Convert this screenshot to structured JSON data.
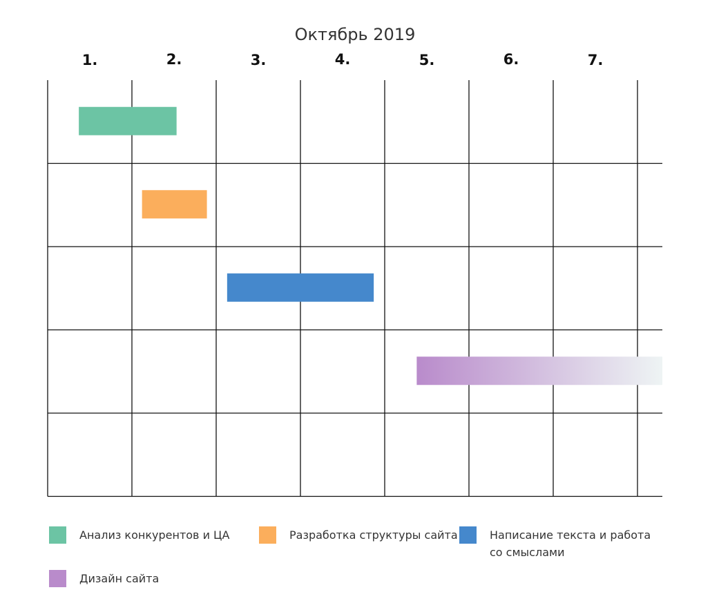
{
  "chart_data": {
    "type": "gantt",
    "title": "Октябрь 2019",
    "columns": [
      "1.",
      "2.",
      "3.",
      "4.",
      "5.",
      "6.",
      "7."
    ],
    "rows": 5,
    "x_range": [
      0,
      7.3
    ],
    "colors": {
      "green": "#6cc4a4",
      "orange": "#fbae5c",
      "blue": "#4588cc",
      "purple": "#b98bcb",
      "fade_end": "#eef4f4"
    },
    "tasks": [
      {
        "row": 0,
        "start": 0.37,
        "end": 1.53,
        "color": "#6cc4a4"
      },
      {
        "row": 1,
        "start": 1.12,
        "end": 1.89,
        "color": "#fbae5c"
      },
      {
        "row": 2,
        "start": 2.13,
        "end": 3.87,
        "color": "#4588cc"
      },
      {
        "row": 3,
        "start": 4.38,
        "end": 7.3,
        "color": "#b98bcb",
        "fade_to": "#eef4f4"
      }
    ],
    "legend": [
      {
        "label": "Анализ конкурентов и ЦА",
        "color": "#6cc4a4"
      },
      {
        "label": "Разработка структуры сайта",
        "color": "#fbae5c"
      },
      {
        "label": "Написание текста и работа",
        "label_line2": "со смыслами",
        "color": "#4588cc"
      },
      {
        "label": "Дизайн сайта",
        "color": "#b98bcb"
      }
    ]
  }
}
